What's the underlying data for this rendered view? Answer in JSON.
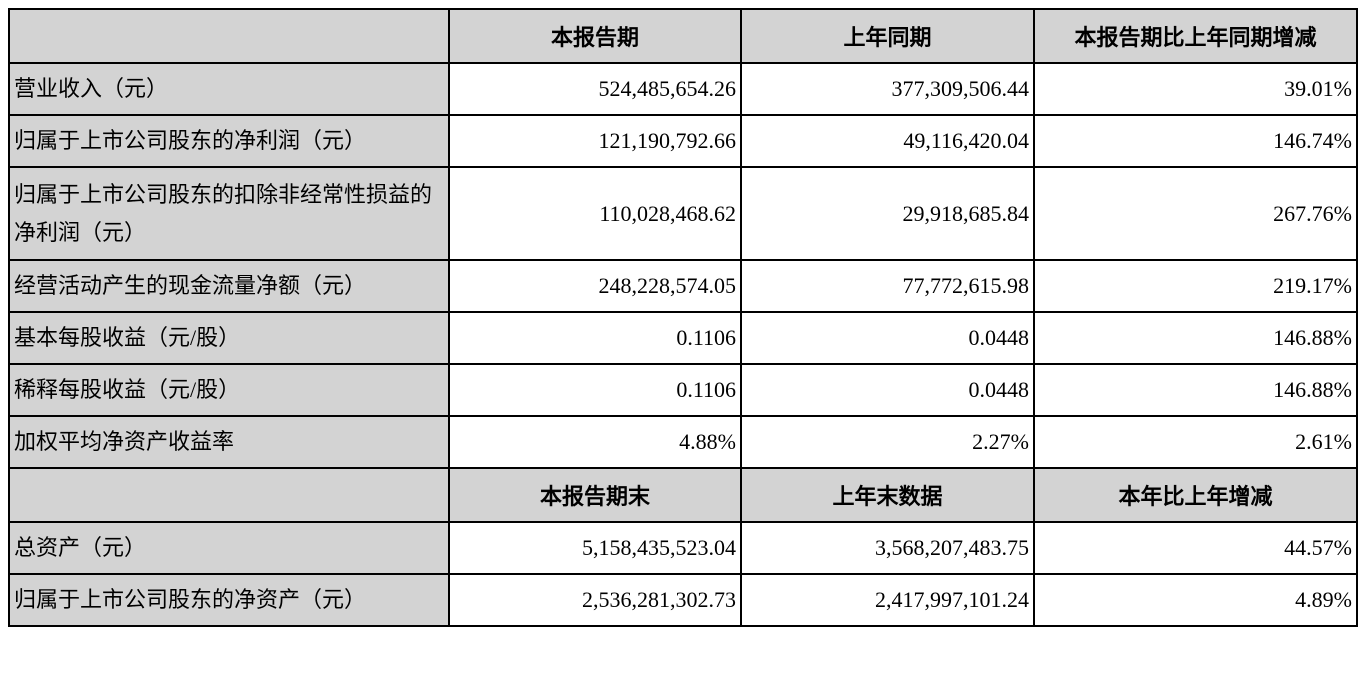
{
  "header1": [
    "",
    "本报告期",
    "上年同期",
    "本报告期比上年同期增减"
  ],
  "rows1": [
    {
      "label": "营业收入（元）",
      "current": "524,485,654.26",
      "prior": "377,309,506.44",
      "change": "39.01%"
    },
    {
      "label": "归属于上市公司股东的净利润（元）",
      "current": "121,190,792.66",
      "prior": "49,116,420.04",
      "change": "146.74%"
    },
    {
      "label": "归属于上市公司股东的扣除非经常性损益的净利润（元）",
      "current": "110,028,468.62",
      "prior": "29,918,685.84",
      "change": "267.76%"
    },
    {
      "label": "经营活动产生的现金流量净额（元）",
      "current": "248,228,574.05",
      "prior": "77,772,615.98",
      "change": "219.17%"
    },
    {
      "label": "基本每股收益（元/股）",
      "current": "0.1106",
      "prior": "0.0448",
      "change": "146.88%"
    },
    {
      "label": "稀释每股收益（元/股）",
      "current": "0.1106",
      "prior": "0.0448",
      "change": "146.88%"
    },
    {
      "label": "加权平均净资产收益率",
      "current": "4.88%",
      "prior": "2.27%",
      "change": "2.61%"
    }
  ],
  "header2": [
    "",
    "本报告期末",
    "上年末数据",
    "本年比上年增减"
  ],
  "rows2": [
    {
      "label": "总资产（元）",
      "current": "5,158,435,523.04",
      "prior": "3,568,207,483.75",
      "change": "44.57%"
    },
    {
      "label": "归属于上市公司股东的净资产（元）",
      "current": "2,536,281,302.73",
      "prior": "2,417,997,101.24",
      "change": "4.89%"
    }
  ]
}
